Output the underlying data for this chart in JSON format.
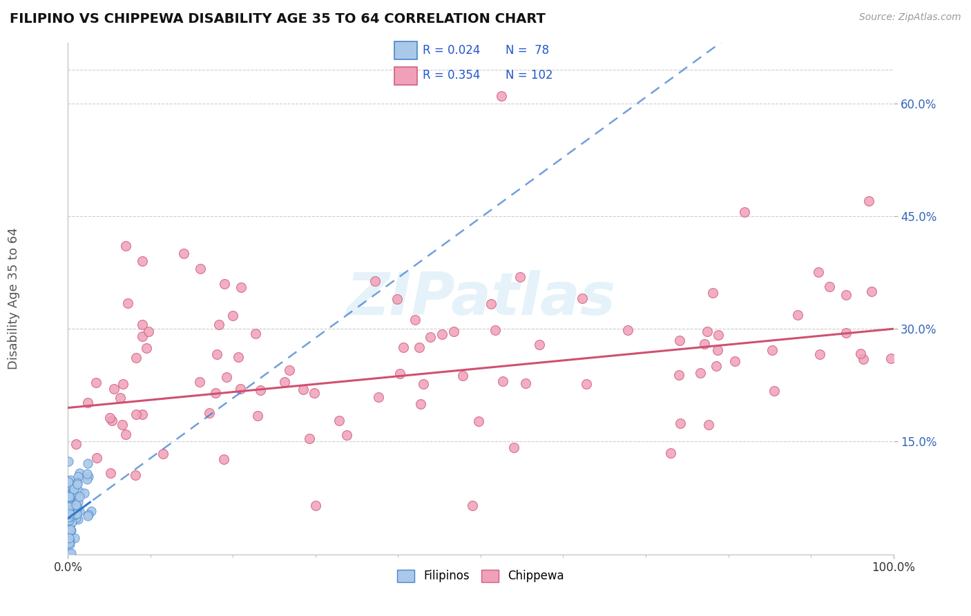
{
  "title": "FILIPINO VS CHIPPEWA DISABILITY AGE 35 TO 64 CORRELATION CHART",
  "source": "Source: ZipAtlas.com",
  "ylabel": "Disability Age 35 to 64",
  "yticks_labels": [
    "15.0%",
    "30.0%",
    "45.0%",
    "60.0%"
  ],
  "ytick_vals": [
    0.15,
    0.3,
    0.45,
    0.6
  ],
  "xlim": [
    0.0,
    1.0
  ],
  "ylim": [
    0.0,
    0.68
  ],
  "filipino_face_color": "#aac8e8",
  "filipino_edge_color": "#4488cc",
  "chippewa_face_color": "#f0a0b8",
  "chippewa_edge_color": "#d06080",
  "filipino_line_color": "#3377cc",
  "chippewa_line_color": "#d05070",
  "grid_color": "#cccccc",
  "text_color": "#333333",
  "source_color": "#999999",
  "axis_label_color": "#555555",
  "ytick_color": "#3366bb",
  "watermark_color": "#d5eaf5",
  "legend_text_color": "#2255cc",
  "legend_border_color": "#cccccc",
  "chippewa_intercept": 0.195,
  "chippewa_slope": 0.105,
  "filipino_intercept": 0.048,
  "filipino_slope": 0.8
}
